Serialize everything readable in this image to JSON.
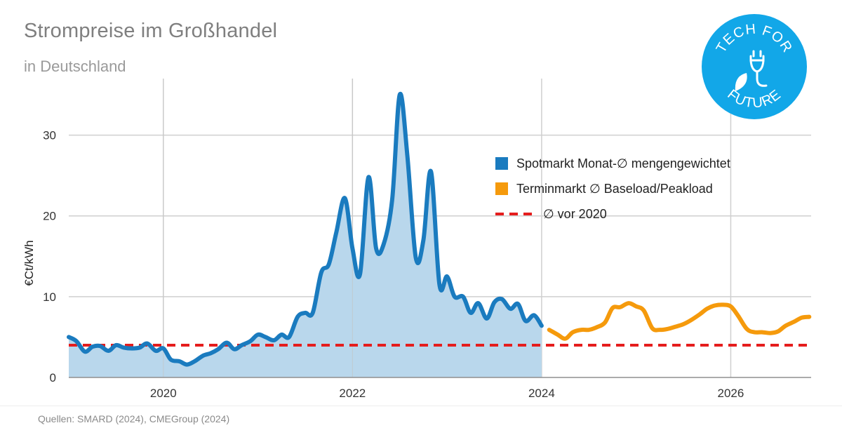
{
  "header": {
    "title": "Strompreise im Großhandel",
    "subtitle": "in Deutschland"
  },
  "footer": {
    "source": "Quellen: SMARD (2024), CMEGroup (2024)"
  },
  "logo": {
    "top_text": "TECH FOR",
    "bottom_text": "FUTURE",
    "icon": "plug-leaf-icon",
    "color": "#12a7e8"
  },
  "chart_data": {
    "type": "line",
    "ylabel": "€Ct/kWh",
    "ylim": [
      0,
      37
    ],
    "xlim": [
      2019.0,
      2026.85
    ],
    "yticks": [
      0,
      10,
      20,
      30
    ],
    "xticks": [
      2020,
      2022,
      2024,
      2026
    ],
    "grid": true,
    "legend_position": "top-right",
    "series": [
      {
        "name": "Spotmarkt Monat-∅ mengengewichtet",
        "color": "#1a7bbf",
        "fill": "#b9d7ec",
        "style": "area",
        "x": [
          2019.0,
          2019.08,
          2019.17,
          2019.25,
          2019.33,
          2019.42,
          2019.5,
          2019.58,
          2019.67,
          2019.75,
          2019.83,
          2019.92,
          2020.0,
          2020.08,
          2020.17,
          2020.25,
          2020.33,
          2020.42,
          2020.5,
          2020.58,
          2020.67,
          2020.75,
          2020.83,
          2020.92,
          2021.0,
          2021.08,
          2021.17,
          2021.25,
          2021.33,
          2021.42,
          2021.5,
          2021.58,
          2021.67,
          2021.75,
          2021.83,
          2021.92,
          2022.0,
          2022.08,
          2022.17,
          2022.25,
          2022.33,
          2022.42,
          2022.5,
          2022.58,
          2022.67,
          2022.75,
          2022.83,
          2022.92,
          2023.0,
          2023.08,
          2023.17,
          2023.25,
          2023.33,
          2023.42,
          2023.5,
          2023.58,
          2023.67,
          2023.75,
          2023.83,
          2023.92,
          2024.0
        ],
        "values": [
          5.0,
          4.5,
          3.2,
          3.8,
          3.9,
          3.3,
          4.0,
          3.7,
          3.6,
          3.7,
          4.2,
          3.3,
          3.6,
          2.2,
          2.0,
          1.6,
          2.0,
          2.7,
          3.0,
          3.5,
          4.3,
          3.5,
          4.0,
          4.5,
          5.3,
          5.0,
          4.6,
          5.3,
          5.0,
          7.5,
          8.0,
          8.0,
          13.0,
          14.0,
          18.0,
          22.2,
          16.0,
          12.8,
          24.8,
          16.0,
          16.5,
          22.0,
          35.0,
          27.5,
          14.8,
          17.0,
          25.5,
          11.5,
          12.5,
          10.0,
          10.0,
          8.0,
          9.2,
          7.3,
          9.3,
          9.7,
          8.5,
          9.1,
          7.0,
          7.7,
          6.4
        ]
      },
      {
        "name": "Terminmarkt ∅ Baseload/Peakload",
        "color": "#f59a0c",
        "style": "line",
        "x": [
          2024.08,
          2024.17,
          2024.25,
          2024.33,
          2024.42,
          2024.5,
          2024.58,
          2024.67,
          2024.75,
          2024.83,
          2024.92,
          2025.0,
          2025.08,
          2025.17,
          2025.25,
          2025.33,
          2025.42,
          2025.5,
          2025.58,
          2025.67,
          2025.75,
          2025.83,
          2025.92,
          2026.0,
          2026.08,
          2026.17,
          2026.25,
          2026.33,
          2026.42,
          2026.5,
          2026.58,
          2026.67,
          2026.75,
          2026.83
        ],
        "values": [
          5.9,
          5.3,
          4.8,
          5.6,
          5.9,
          5.9,
          6.2,
          6.8,
          8.6,
          8.7,
          9.2,
          8.8,
          8.3,
          6.1,
          5.9,
          6.0,
          6.3,
          6.6,
          7.1,
          7.8,
          8.5,
          8.9,
          9.0,
          8.8,
          7.6,
          6.0,
          5.6,
          5.6,
          5.5,
          5.7,
          6.4,
          6.9,
          7.4,
          7.5
        ]
      },
      {
        "name": "∅ vor 2020",
        "color": "#e51d1d",
        "style": "dashed",
        "x": [
          2019.0,
          2026.85
        ],
        "values": [
          4.0,
          4.0
        ]
      }
    ]
  }
}
